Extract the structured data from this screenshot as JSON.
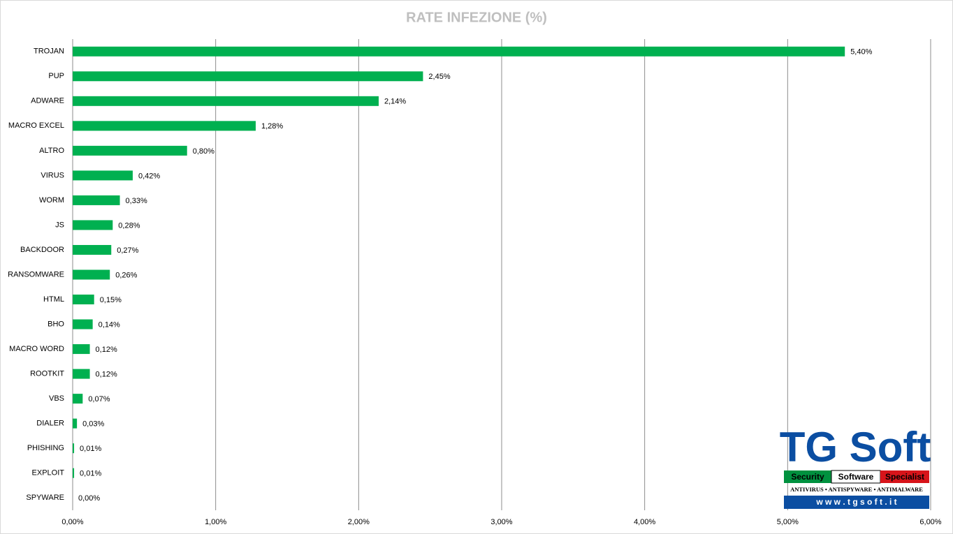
{
  "chart_data": {
    "type": "bar",
    "orientation": "horizontal",
    "title": "RATE INFEZIONE (%)",
    "categories": [
      "TROJAN",
      "PUP",
      "ADWARE",
      "MACRO EXCEL",
      "ALTRO",
      "VIRUS",
      "WORM",
      "JS",
      "BACKDOOR",
      "RANSOMWARE",
      "HTML",
      "BHO",
      "MACRO WORD",
      "ROOTKIT",
      "VBS",
      "DIALER",
      "PHISHING",
      "EXPLOIT",
      "SPYWARE"
    ],
    "values": [
      5.4,
      2.45,
      2.14,
      1.28,
      0.8,
      0.42,
      0.33,
      0.28,
      0.27,
      0.26,
      0.15,
      0.14,
      0.12,
      0.12,
      0.07,
      0.03,
      0.01,
      0.01,
      0.0
    ],
    "value_labels": [
      "5,40%",
      "2,45%",
      "2,14%",
      "1,28%",
      "0,80%",
      "0,42%",
      "0,33%",
      "0,28%",
      "0,27%",
      "0,26%",
      "0,15%",
      "0,14%",
      "0,12%",
      "0,12%",
      "0,07%",
      "0,03%",
      "0,01%",
      "0,01%",
      "0,00%"
    ],
    "color": "#00b050",
    "xlim": [
      0,
      6
    ],
    "xticks": [
      {
        "value": 0,
        "label": "0,00%"
      },
      {
        "value": 1,
        "label": "1,00%"
      },
      {
        "value": 2,
        "label": "2,00%"
      },
      {
        "value": 3,
        "label": "3,00%"
      },
      {
        "value": 4,
        "label": "4,00%"
      },
      {
        "value": 5,
        "label": "5,00%"
      },
      {
        "value": 6,
        "label": "6,00%"
      }
    ],
    "grid": true
  },
  "logo": {
    "name": "TG Soft",
    "tags": [
      "Security",
      "Software",
      "Specialist"
    ],
    "tagline": "ANTIVIRUS • ANTISPYWARE • ANTIMALWARE",
    "url": "w w w . t g s o f t . i t"
  }
}
